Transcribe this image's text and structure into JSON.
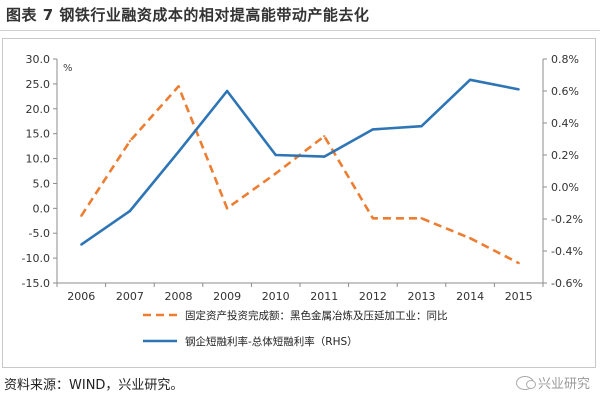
{
  "header": {
    "title": "图表 7  钢铁行业融资成本的相对提高能带动产能去化"
  },
  "footer": {
    "source": "资料来源：WIND，兴业研究。",
    "watermark": "兴业研究"
  },
  "chart_data": {
    "type": "line",
    "title": "",
    "categories": [
      "2006",
      "2007",
      "2008",
      "2009",
      "2010",
      "2011",
      "2012",
      "2013",
      "2014",
      "2015"
    ],
    "y_left": {
      "unit_label": "%",
      "ylim": [
        -15,
        30
      ],
      "ticks": [
        "30.0",
        "25.0",
        "20.0",
        "15.0",
        "10.0",
        "5.0",
        "0.0",
        "-5.0",
        "-10.0",
        "-15.0"
      ],
      "tick_values": [
        30,
        25,
        20,
        15,
        10,
        5,
        0,
        -5,
        -10,
        -15
      ]
    },
    "y_right": {
      "ylim": [
        -0.6,
        0.8
      ],
      "ticks": [
        "0.8%",
        "0.6%",
        "0.4%",
        "0.2%",
        "0.0%",
        "-0.2%",
        "-0.4%",
        "-0.6%"
      ],
      "tick_values": [
        0.8,
        0.6,
        0.4,
        0.2,
        0.0,
        -0.2,
        -0.4,
        -0.6
      ]
    },
    "series": [
      {
        "name": "固定资产投资完成额：黑色金属冶炼及压延加工业：同比",
        "axis": "left",
        "style": "dashed",
        "color": "#ED7D31",
        "values": [
          -1.5,
          13.5,
          24.5,
          0.0,
          7.0,
          14.5,
          -2.0,
          -2.0,
          -6.0,
          -11.0
        ]
      },
      {
        "name": "钢企短融利率-总体短融利率（RHS）",
        "axis": "right",
        "style": "solid",
        "color": "#2E75B6",
        "values": [
          -0.36,
          -0.15,
          0.22,
          0.6,
          0.2,
          0.19,
          0.36,
          0.38,
          0.67,
          0.61
        ]
      }
    ],
    "legend_position": "bottom",
    "grid": false
  }
}
